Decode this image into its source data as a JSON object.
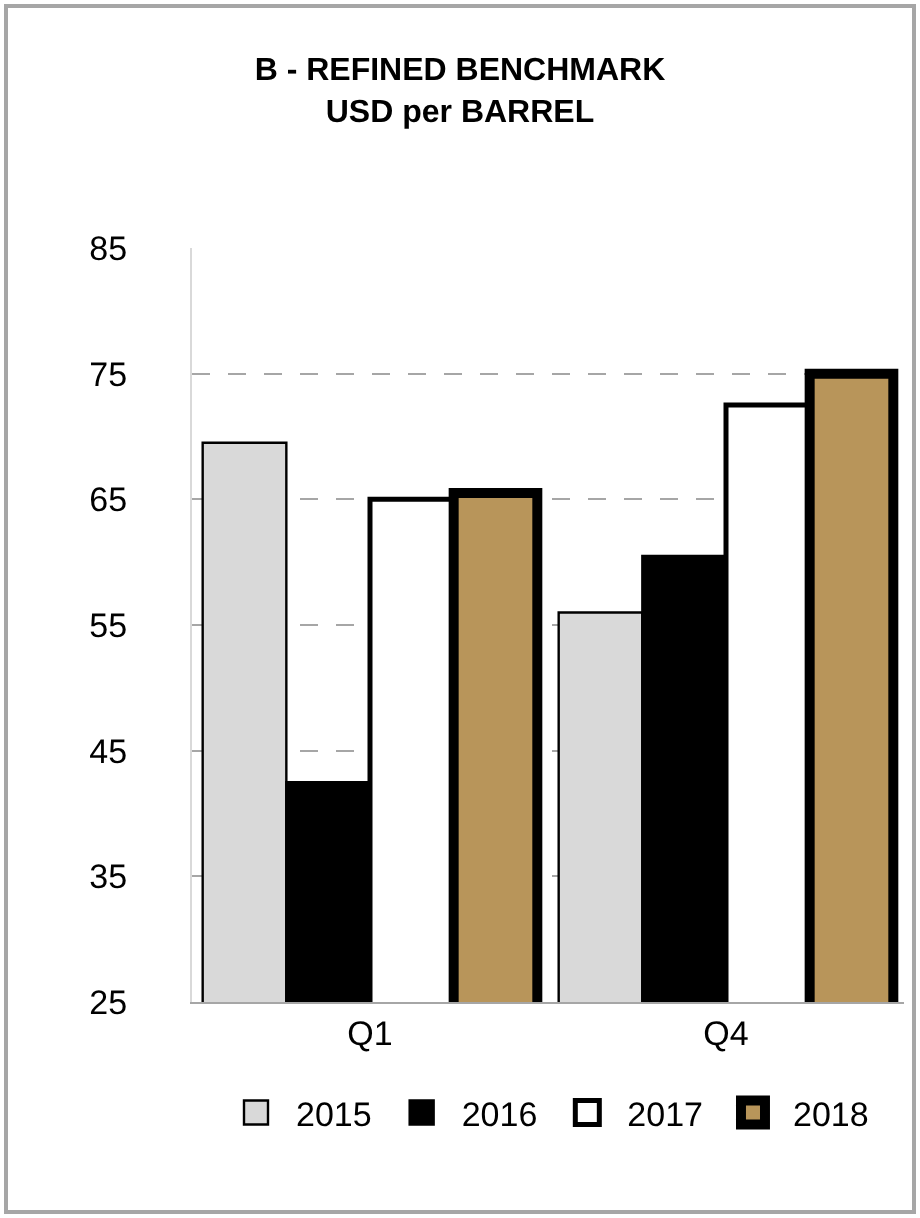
{
  "chart_data": {
    "type": "bar",
    "title": "B - REFINED BENCHMARK\nUSD per BARREL",
    "categories": [
      "Q1",
      "Q4"
    ],
    "series": [
      {
        "name": "2015",
        "color": "#d9d9d9",
        "values": [
          69.5,
          56
        ]
      },
      {
        "name": "2016",
        "color": "#000000",
        "values": [
          42.5,
          60.5
        ]
      },
      {
        "name": "2017",
        "color": "#ffffff",
        "values": [
          65,
          72.5
        ]
      },
      {
        "name": "2018",
        "color": "#b8955a",
        "values": [
          65.5,
          75
        ]
      }
    ],
    "ylim": [
      25,
      85
    ],
    "yticks": [
      25,
      35,
      45,
      55,
      65,
      75,
      85
    ],
    "grid": "y",
    "legend": "bottom"
  }
}
